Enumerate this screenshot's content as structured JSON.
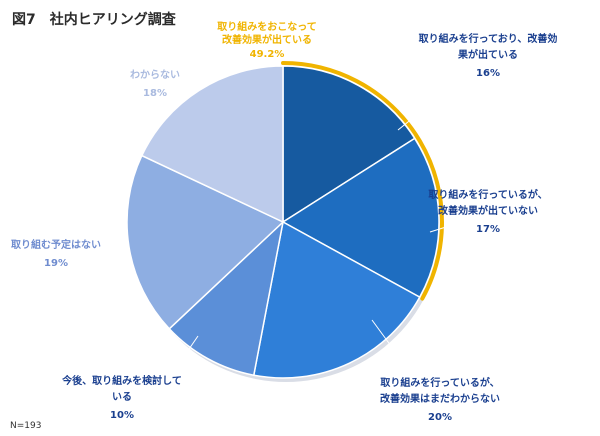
{
  "title": "図7　社内ヒアリング調査",
  "note": "N=193",
  "chart_data": {
    "type": "pie",
    "title": "図7　社内ヒアリング調査",
    "sample_size_label": "N=193",
    "start_angle": "12 o'clock",
    "direction": "clockwise",
    "slices": [
      {
        "label_lines": [
          "取り組みを行っており、改善効",
          "果が出ている"
        ],
        "value": 16,
        "value_label": "16%",
        "color": "#165aa0",
        "label_color": "#1a3f8f"
      },
      {
        "label_lines": [
          "取り組みを行っているが、",
          "改善効果が出ていない"
        ],
        "value": 17,
        "value_label": "17%",
        "color": "#1e6dc0",
        "label_color": "#1a3f8f"
      },
      {
        "label_lines": [
          "取り組みを行っているが、",
          "改善効果はまだわからない"
        ],
        "value": 20,
        "value_label": "20%",
        "color": "#2f7fd8",
        "label_color": "#1a3f8f"
      },
      {
        "label_lines": [
          "今後、取り組みを検討して",
          "いる"
        ],
        "value": 10,
        "value_label": "10%",
        "color": "#5b8fd8",
        "label_color": "#1a3f8f"
      },
      {
        "label_lines": [
          "取り組む予定はない"
        ],
        "value": 19,
        "value_label": "19%",
        "color": "#8eaee2",
        "label_color": "#6f8ccf"
      },
      {
        "label_lines": [
          "わからない"
        ],
        "value": 18,
        "value_label": "18%",
        "color": "#bccbeb",
        "label_color": "#a9badf"
      }
    ],
    "highlight": {
      "label_lines": [
        "取り組みをおこなって",
        "改善効果が出ている"
      ],
      "value_label": "49.2%",
      "color": "#f0b400",
      "spans_slices": [
        0,
        1
      ]
    }
  }
}
